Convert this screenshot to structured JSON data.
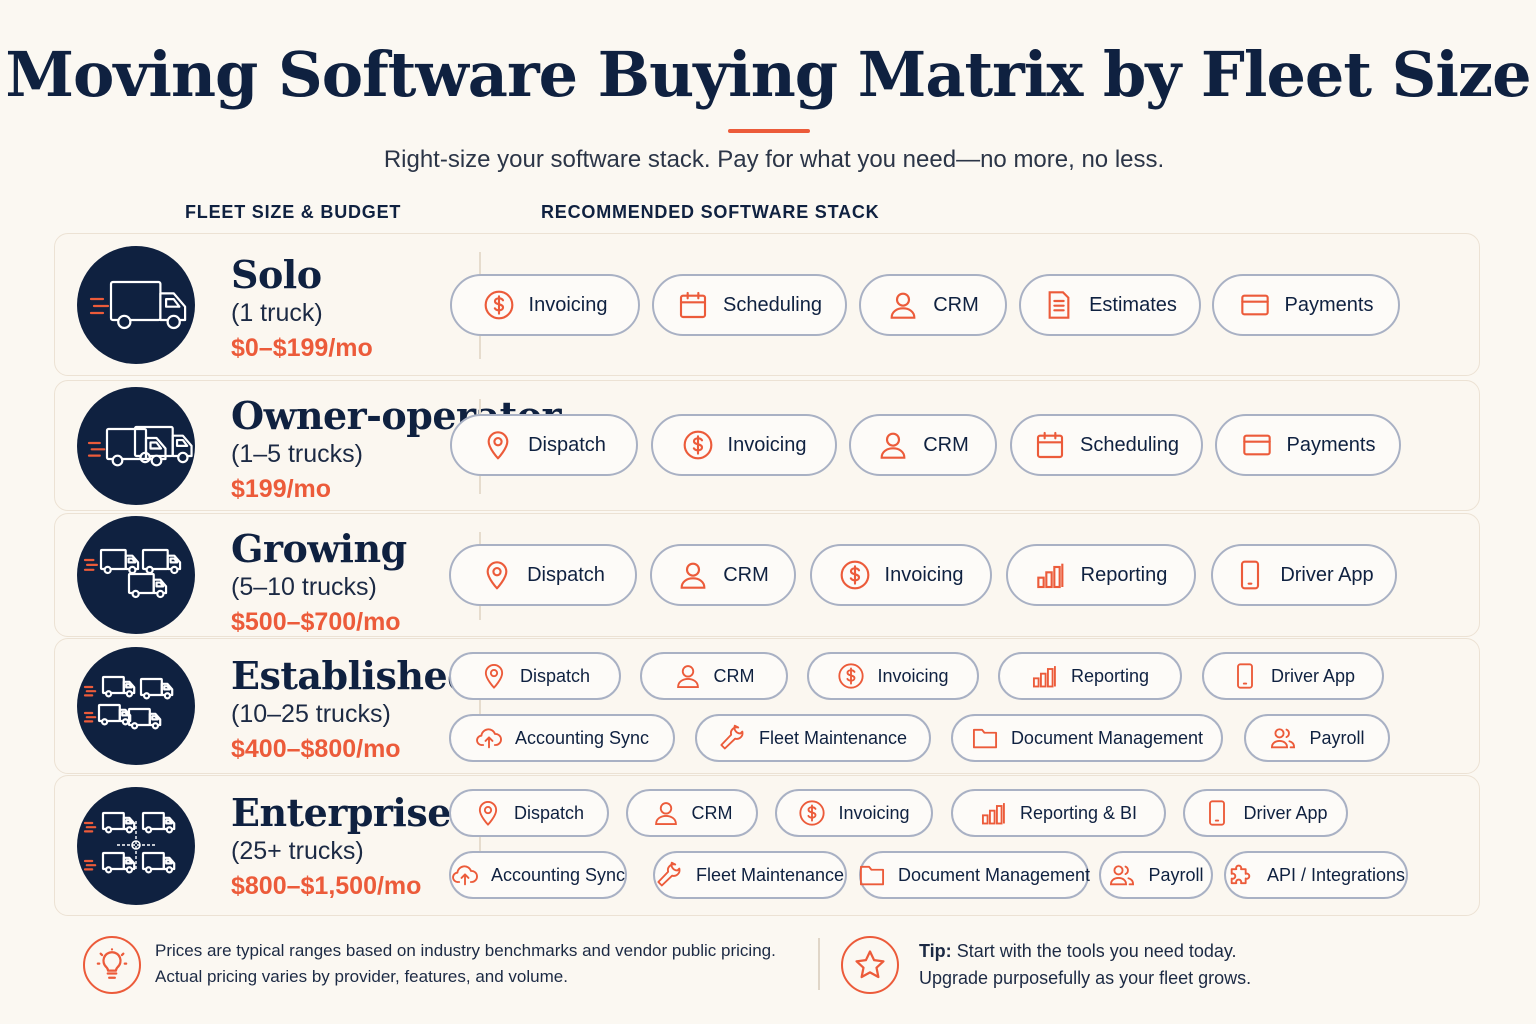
{
  "title": "Moving Software Buying Matrix by Fleet Size",
  "subtitle": "Right-size your software stack. Pay for what you need—no more, no less.",
  "columns": {
    "left": "FLEET SIZE & BUDGET",
    "right": "RECOMMENDED SOFTWARE STACK"
  },
  "colors": {
    "navy": "#0f2140",
    "accent": "#ec5b3a",
    "pill_border": "#a9b1c4",
    "background": "#fbf8f2"
  },
  "tiers": [
    {
      "name": "Solo",
      "size": "(1 truck)",
      "price": "$0–$199/mo",
      "badge_icon": "truck-icon",
      "software": [
        {
          "label": "Invoicing",
          "icon": "dollar-icon"
        },
        {
          "label": "Scheduling",
          "icon": "calendar-icon"
        },
        {
          "label": "CRM",
          "icon": "user-icon"
        },
        {
          "label": "Estimates",
          "icon": "document-icon"
        },
        {
          "label": "Payments",
          "icon": "card-icon"
        }
      ]
    },
    {
      "name": "Owner-operator",
      "size": "(1–5 trucks)",
      "price": "$199/mo",
      "badge_icon": "two-trucks-icon",
      "software": [
        {
          "label": "Dispatch",
          "icon": "location-pin-icon"
        },
        {
          "label": "Invoicing",
          "icon": "dollar-icon"
        },
        {
          "label": "CRM",
          "icon": "user-icon"
        },
        {
          "label": "Scheduling",
          "icon": "calendar-icon"
        },
        {
          "label": "Payments",
          "icon": "card-icon"
        }
      ]
    },
    {
      "name": "Growing",
      "size": "(5–10 trucks)",
      "price": "$500–$700/mo",
      "badge_icon": "three-trucks-icon",
      "software": [
        {
          "label": "Dispatch",
          "icon": "location-pin-icon"
        },
        {
          "label": "CRM",
          "icon": "user-icon"
        },
        {
          "label": "Invoicing",
          "icon": "dollar-icon"
        },
        {
          "label": "Reporting",
          "icon": "bar-chart-icon"
        },
        {
          "label": "Driver App",
          "icon": "phone-icon"
        }
      ]
    },
    {
      "name": "Established",
      "size": "(10–25 trucks)",
      "price": "$400–$800/mo",
      "badge_icon": "fleet-icon",
      "software": [
        {
          "label": "Dispatch",
          "icon": "location-pin-icon"
        },
        {
          "label": "CRM",
          "icon": "user-icon"
        },
        {
          "label": "Invoicing",
          "icon": "dollar-icon"
        },
        {
          "label": "Reporting",
          "icon": "bar-chart-icon"
        },
        {
          "label": "Driver App",
          "icon": "phone-icon"
        },
        {
          "label": "Accounting Sync",
          "icon": "cloud-upload-icon"
        },
        {
          "label": "Fleet Maintenance",
          "icon": "wrench-icon"
        },
        {
          "label": "Document Management",
          "icon": "folder-icon"
        },
        {
          "label": "Payroll",
          "icon": "users-icon"
        }
      ]
    },
    {
      "name": "Enterprise",
      "size": "(25+ trucks)",
      "price": "$800–$1,500/mo",
      "badge_icon": "network-fleet-icon",
      "software": [
        {
          "label": "Dispatch",
          "icon": "location-pin-icon"
        },
        {
          "label": "CRM",
          "icon": "user-icon"
        },
        {
          "label": "Invoicing",
          "icon": "dollar-icon"
        },
        {
          "label": "Reporting & BI",
          "icon": "bar-chart-icon"
        },
        {
          "label": "Driver App",
          "icon": "phone-icon"
        },
        {
          "label": "Accounting Sync",
          "icon": "cloud-upload-icon"
        },
        {
          "label": "Fleet Maintenance",
          "icon": "wrench-icon"
        },
        {
          "label": "Document Management",
          "icon": "folder-icon"
        },
        {
          "label": "Payroll",
          "icon": "users-icon"
        },
        {
          "label": "API / Integrations",
          "icon": "puzzle-icon"
        }
      ]
    }
  ],
  "footer": {
    "note_line1": "Prices are typical ranges based on industry benchmarks and vendor public pricing.",
    "note_line2": "Actual pricing varies by provider, features, and volume.",
    "note_icon": "lightbulb-icon",
    "tip_label": "Tip:",
    "tip_line1": "Start with the tools you need today.",
    "tip_line2": "Upgrade purposefully as your fleet grows.",
    "tip_icon": "star-icon"
  }
}
